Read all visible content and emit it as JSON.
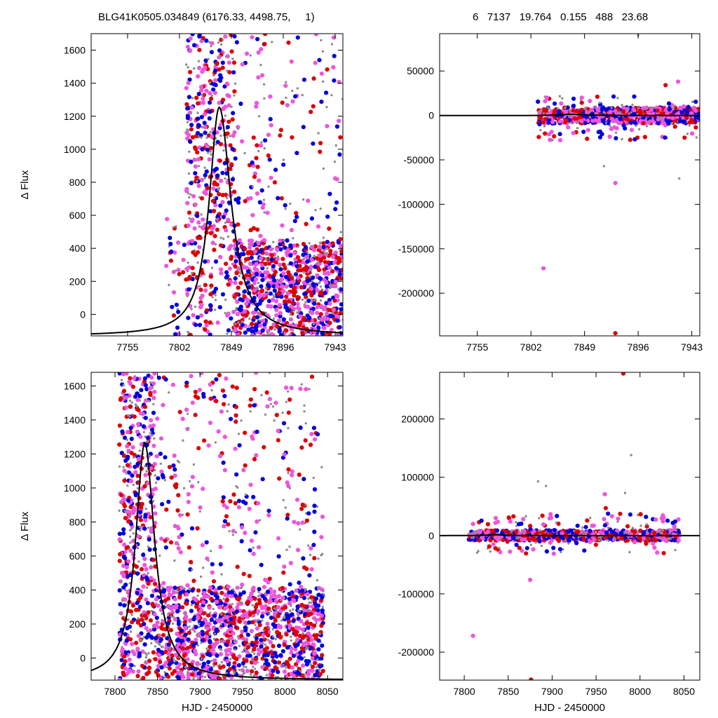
{
  "header": {
    "left_title": "BLG41K0505.034849 (6176.33, 4498.75,     1)",
    "right_title": "6   7137   19.764   0.155   488   23.68"
  },
  "colors": {
    "blue": "#0000dd",
    "red": "#dd0000",
    "pink": "#ee55dd",
    "gray": "#8c8c8c",
    "model": "#000000"
  },
  "chart_data": [
    {
      "id": "top-left",
      "type": "scatter",
      "ylabel": "Δ Flux",
      "xlabel": "",
      "xlim": [
        7722,
        7950
      ],
      "ylim": [
        -130,
        1700
      ],
      "xticks": [
        7755,
        7802,
        7849,
        7896,
        7943
      ],
      "xtick_labels": [
        "7755",
        "7802",
        "7849",
        "7896",
        "7943"
      ],
      "yticks": [
        0,
        200,
        400,
        600,
        800,
        1000,
        1200,
        1400,
        1600
      ],
      "ytick_labels": [
        "0",
        "200",
        "400",
        "600",
        "800",
        "1000",
        "1200",
        "1400",
        "1600"
      ],
      "model": {
        "t0": 7838,
        "peak": 1255,
        "base": -130,
        "w_rise": 11,
        "w_fall": 13
      },
      "clusters": [
        {
          "x": [
            7808,
            7852
          ],
          "y": [
            -130,
            1700
          ],
          "n": 520,
          "seed": 11
        },
        {
          "x": [
            7852,
            7950
          ],
          "y": [
            -130,
            450
          ],
          "n": 900,
          "seed": 12
        },
        {
          "x": [
            7852,
            7950
          ],
          "y": [
            450,
            1700
          ],
          "n": 160,
          "seed": 13
        },
        {
          "x": [
            7790,
            7808
          ],
          "y": [
            -130,
            700
          ],
          "n": 30,
          "seed": 14
        }
      ]
    },
    {
      "id": "top-right",
      "type": "scatter",
      "ylabel": "",
      "xlabel": "",
      "xlim": [
        7722,
        7950
      ],
      "ylim": [
        -248000,
        92000
      ],
      "xticks": [
        7755,
        7802,
        7849,
        7896,
        7943
      ],
      "xtick_labels": [
        "7755",
        "7802",
        "7849",
        "7896",
        "7943"
      ],
      "yticks": [
        -200000,
        -150000,
        -100000,
        -50000,
        0,
        50000
      ],
      "ytick_labels": [
        "-200000",
        "-150000",
        "-100000",
        "-50000",
        "0",
        "50000"
      ],
      "model": {
        "t0": 7838,
        "peak": 1255,
        "base": -130,
        "w_rise": 11,
        "w_fall": 13
      },
      "clusters": [
        {
          "x": [
            7808,
            7950
          ],
          "y": [
            -9000,
            9000
          ],
          "n": 700,
          "seed": 21
        },
        {
          "x": [
            7808,
            7950
          ],
          "y": [
            -28000,
            22000
          ],
          "n": 120,
          "seed": 22
        }
      ],
      "outliers": [
        {
          "x": 7813,
          "y": -172000,
          "c": "pink"
        },
        {
          "x": 7876,
          "y": -245000,
          "c": "red"
        },
        {
          "x": 7876,
          "y": -76000,
          "c": "pink"
        },
        {
          "x": 7866,
          "y": -57000,
          "c": "gray"
        },
        {
          "x": 7920,
          "y": 34000,
          "c": "red"
        },
        {
          "x": 7931,
          "y": 38000,
          "c": "pink"
        },
        {
          "x": 7816,
          "y": 20000,
          "c": "pink"
        },
        {
          "x": 7896,
          "y": 90000,
          "c": "gray"
        },
        {
          "x": 7932,
          "y": -71000,
          "c": "gray"
        }
      ]
    },
    {
      "id": "bottom-left",
      "type": "scatter",
      "ylabel": "Δ Flux",
      "xlabel": "HJD - 2450000",
      "xlim": [
        7772,
        8068
      ],
      "ylim": [
        -130,
        1680
      ],
      "xticks": [
        7800,
        7850,
        7900,
        7950,
        8000,
        8050
      ],
      "xtick_labels": [
        "7800",
        "7850",
        "7900",
        "7950",
        "8000",
        "8050"
      ],
      "yticks": [
        0,
        200,
        400,
        600,
        800,
        1000,
        1200,
        1400,
        1600
      ],
      "ytick_labels": [
        "0",
        "200",
        "400",
        "600",
        "800",
        "1000",
        "1200",
        "1400",
        "1600"
      ],
      "model": {
        "t0": 7835,
        "peak": 1265,
        "base": -130,
        "w_rise": 13,
        "w_fall": 14
      },
      "clusters": [
        {
          "x": [
            7805,
            7848
          ],
          "y": [
            -130,
            1680
          ],
          "n": 560,
          "seed": 31
        },
        {
          "x": [
            7848,
            8045
          ],
          "y": [
            -130,
            420
          ],
          "n": 1300,
          "seed": 32
        },
        {
          "x": [
            7848,
            8045
          ],
          "y": [
            420,
            1680
          ],
          "n": 320,
          "seed": 33
        }
      ]
    },
    {
      "id": "bottom-right",
      "type": "scatter",
      "ylabel": "",
      "xlabel": "HJD - 2450000",
      "xlim": [
        7772,
        8068
      ],
      "ylim": [
        -248000,
        280000
      ],
      "xticks": [
        7800,
        7850,
        7900,
        7950,
        8000,
        8050
      ],
      "xtick_labels": [
        "7800",
        "7850",
        "7900",
        "7950",
        "8000",
        "8050"
      ],
      "yticks": [
        -200000,
        -100000,
        0,
        100000,
        200000
      ],
      "ytick_labels": [
        "-200000",
        "-100000",
        "0",
        "100000",
        "200000"
      ],
      "model": {
        "t0": 7835,
        "peak": 1265,
        "base": -130,
        "w_rise": 13,
        "w_fall": 14
      },
      "clusters": [
        {
          "x": [
            7805,
            8045
          ],
          "y": [
            -9000,
            9000
          ],
          "n": 800,
          "seed": 41
        },
        {
          "x": [
            7805,
            8045
          ],
          "y": [
            -32000,
            38000
          ],
          "n": 150,
          "seed": 42
        }
      ],
      "outliers": [
        {
          "x": 7810,
          "y": -172000,
          "c": "pink"
        },
        {
          "x": 7876,
          "y": -247000,
          "c": "red"
        },
        {
          "x": 7875,
          "y": -76000,
          "c": "pink"
        },
        {
          "x": 7981,
          "y": 278000,
          "c": "red"
        },
        {
          "x": 7990,
          "y": 138000,
          "c": "gray"
        },
        {
          "x": 7884,
          "y": 93000,
          "c": "gray"
        },
        {
          "x": 7893,
          "y": 85000,
          "c": "gray"
        },
        {
          "x": 7960,
          "y": 71000,
          "c": "pink"
        },
        {
          "x": 7961,
          "y": 47000,
          "c": "red"
        },
        {
          "x": 7983,
          "y": 73000,
          "c": "gray"
        },
        {
          "x": 7889,
          "y": 34000,
          "c": "red"
        },
        {
          "x": 7810,
          "y": 20000,
          "c": "pink"
        }
      ]
    }
  ]
}
